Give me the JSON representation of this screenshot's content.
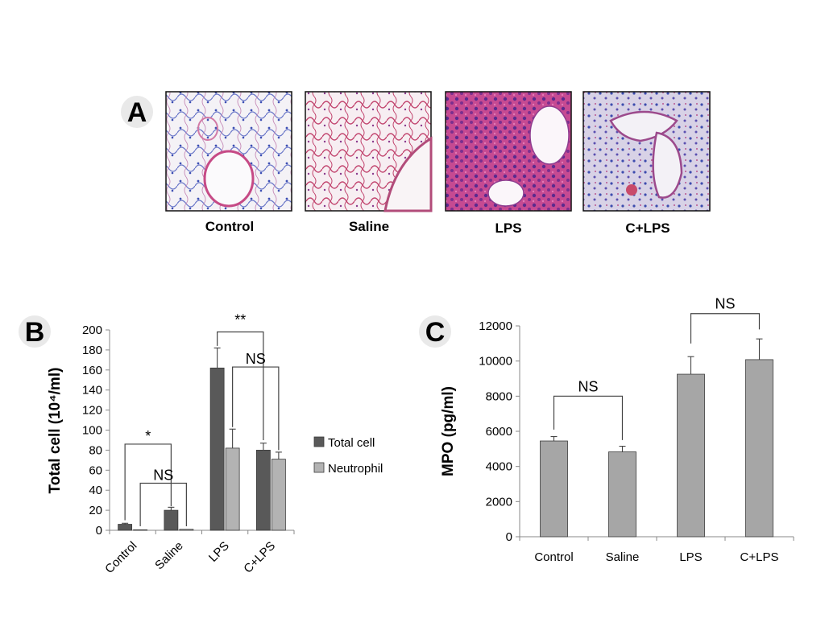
{
  "panel_a": {
    "letter": "A",
    "images": [
      {
        "label": "Control"
      },
      {
        "label": "Saline"
      },
      {
        "label": "LPS"
      },
      {
        "label": "C+LPS"
      }
    ]
  },
  "chart_data": [
    {
      "type": "bar",
      "panel": "B",
      "title": "",
      "xlabel": "",
      "ylabel": "Total cell (10⁴/ml)",
      "categories": [
        "Control",
        "Saline",
        "LPS",
        "C+LPS"
      ],
      "ylim": [
        0,
        200
      ],
      "yticks": [
        0,
        20,
        40,
        60,
        80,
        100,
        120,
        140,
        160,
        180,
        200
      ],
      "series": [
        {
          "name": "Total cell",
          "color": "#595959",
          "values": [
            6,
            20,
            162,
            80
          ],
          "errors": [
            1,
            3,
            20,
            7
          ]
        },
        {
          "name": "Neutrophil",
          "color": "#b3b3b3",
          "values": [
            0.5,
            1,
            82,
            71
          ],
          "errors": [
            0,
            0,
            19,
            7
          ]
        }
      ],
      "legend": "right",
      "annotations": [
        "*",
        "NS",
        "**",
        "NS"
      ]
    },
    {
      "type": "bar",
      "panel": "C",
      "title": "",
      "xlabel": "",
      "ylabel": "MPO (pg/ml)",
      "categories": [
        "Control",
        "Saline",
        "LPS",
        "C+LPS"
      ],
      "ylim": [
        0,
        12000
      ],
      "yticks": [
        0,
        2000,
        4000,
        6000,
        8000,
        10000,
        12000
      ],
      "series": [
        {
          "color": "#a6a6a6",
          "values": [
            5450,
            4830,
            9250,
            10080
          ],
          "errors": [
            250,
            320,
            1000,
            1180
          ]
        }
      ],
      "annotations": [
        "NS",
        "NS"
      ]
    }
  ]
}
